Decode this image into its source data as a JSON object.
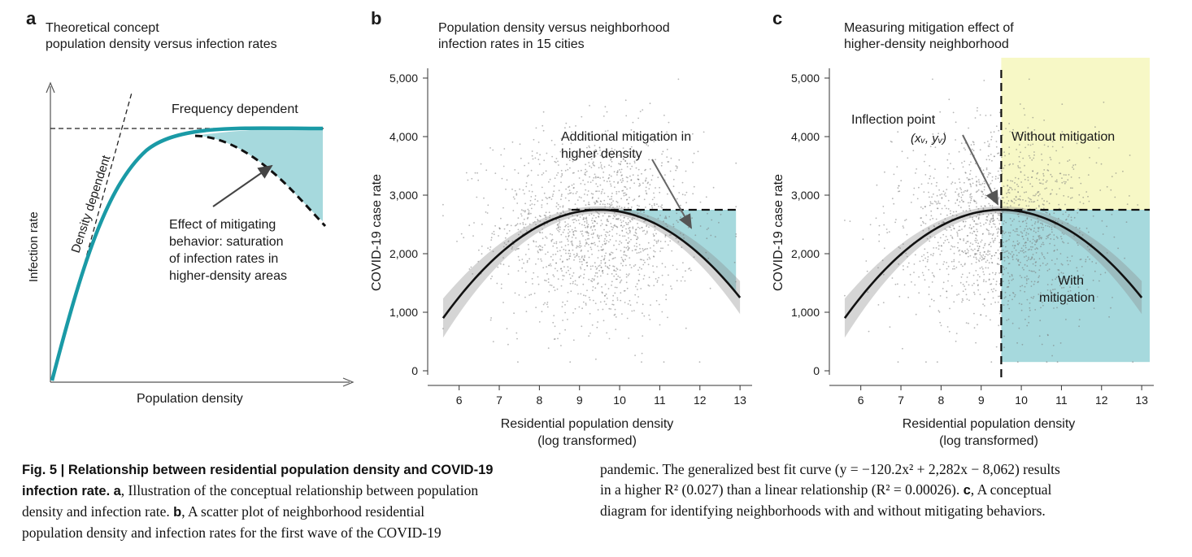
{
  "panel_a": {
    "letter": "a",
    "title_line1": "Theoretical concept",
    "title_line2": "population density versus infection rates",
    "xlabel": "Population density",
    "ylabel": "Infection rate",
    "label_frequency": "Frequency dependent",
    "label_density": "Density dependent",
    "annotation_line1": "Effect of mitigating",
    "annotation_line2": "behavior: saturation",
    "annotation_line3": "of infection rates in",
    "annotation_line4": "higher-density areas"
  },
  "panel_b": {
    "letter": "b",
    "title_line1": "Population density versus neighborhood",
    "title_line2": "infection rates in 15 cities",
    "annotation_line1": "Additional mitigation in",
    "annotation_line2": "higher density"
  },
  "panel_c": {
    "letter": "c",
    "title_line1": "Measuring mitigation effect of",
    "title_line2": "higher-density neighborhood",
    "inflection_line1": "Inflection point",
    "inflection_line2": "(xᵥ, yᵥ)",
    "without_label": "Without mitigation",
    "with_line1": "With",
    "with_line2": "mitigation"
  },
  "colors": {
    "curve_teal": "#1a9aa6",
    "fill_teal": "#a6d9dd",
    "fill_yellow": "#f7f8c6",
    "dark_curve": "#111111",
    "points": "#7a7a7a"
  },
  "chart_data": [
    {
      "type": "scatter",
      "panel": "b",
      "xlabel_line1": "Residential population density",
      "xlabel_line2": "(log transformed)",
      "ylabel": "COVID-19 case rate",
      "xlim": [
        5.5,
        13.2
      ],
      "ylim": [
        0,
        5000
      ],
      "x_ticks": [
        "6",
        "7",
        "8",
        "9",
        "10",
        "11",
        "12",
        "13"
      ],
      "y_ticks": [
        "0",
        "1,000",
        "2,000",
        "3,000",
        "4,000",
        "5,000"
      ],
      "fit": {
        "a": -120.2,
        "b": 2282,
        "c": -8062,
        "shape": "quadratic"
      },
      "mitigation_band": {
        "y": 2750,
        "x_from": 9.5,
        "x_to": 13
      }
    },
    {
      "type": "scatter",
      "panel": "c",
      "xlabel_line1": "Residential population density",
      "xlabel_line2": "(log transformed)",
      "ylabel": "COVID-19 case rate",
      "xlim": [
        5.5,
        13.2
      ],
      "ylim": [
        0,
        5000
      ],
      "x_ticks": [
        "6",
        "7",
        "8",
        "9",
        "10",
        "11",
        "12",
        "13"
      ],
      "y_ticks": [
        "0",
        "1,000",
        "2,000",
        "3,000",
        "4,000",
        "5,000"
      ],
      "inflection": {
        "x": 9.5,
        "y": 2750
      },
      "regions": [
        "Without mitigation",
        "With mitigation"
      ]
    }
  ],
  "caption": {
    "fig_label": "Fig. 5 | Relationship between residential population density and COVID-19",
    "fig_label2": "infection rate.",
    "a_letter": "a",
    "a_text": ", Illustration of the conceptual relationship between population",
    "line3": "density and infection rate.",
    "b_letter": "b",
    "b_text": ", A scatter plot of neighborhood residential",
    "line4": "population density and infection rates for the first wave of the COVID-19",
    "line5": "pandemic. The generalized best fit curve (y = −120.2x² + 2,282x − 8,062) results",
    "line6a": "in a higher R² (0.027) than a linear relationship (R² = 0.00026).",
    "c_letter": "c",
    "line6b": ", A conceptual",
    "line7": "diagram for identifying neighborhoods with and without mitigating behaviors."
  }
}
